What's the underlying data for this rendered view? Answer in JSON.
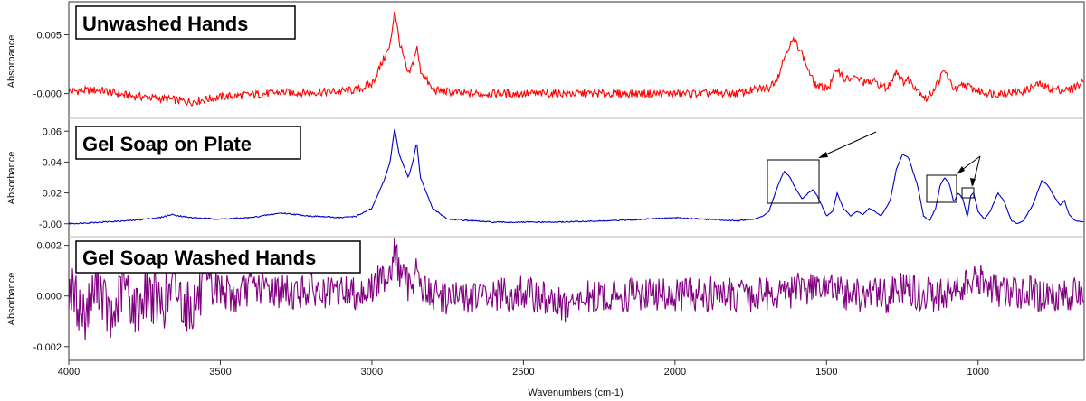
{
  "chart_data": {
    "type": "line",
    "xlabel": "Wavenumbers (cm-1)",
    "xlim": [
      4000,
      650
    ],
    "x_ticks": [
      4000,
      3500,
      3000,
      2500,
      2000,
      1500,
      1000
    ],
    "panels": [
      {
        "title": "Unwashed Hands",
        "ylabel": "Absorbance",
        "ylim": [
          -0.0018,
          0.0075
        ],
        "y_ticks": [
          -0.0,
          0.005
        ],
        "y_tick_labels": [
          "-0.000",
          "0.005"
        ],
        "color": "#ff0000",
        "points": [
          [
            4000,
            0.0002
          ],
          [
            3900,
            0.0003
          ],
          [
            3800,
            -0.0002
          ],
          [
            3700,
            -0.0004
          ],
          [
            3600,
            -0.0007
          ],
          [
            3500,
            -0.0003
          ],
          [
            3400,
            -0.0001
          ],
          [
            3300,
            0.0001
          ],
          [
            3200,
            0.0001
          ],
          [
            3100,
            0.0002
          ],
          [
            3050,
            0.0003
          ],
          [
            3000,
            0.0008
          ],
          [
            2960,
            0.003
          ],
          [
            2940,
            0.004
          ],
          [
            2925,
            0.0072
          ],
          [
            2910,
            0.0045
          ],
          [
            2880,
            0.0015
          ],
          [
            2865,
            0.0025
          ],
          [
            2852,
            0.004
          ],
          [
            2840,
            0.002
          ],
          [
            2800,
            0.0003
          ],
          [
            2700,
            0.0
          ],
          [
            2500,
            0.0
          ],
          [
            2300,
            0.0
          ],
          [
            2100,
            0.0
          ],
          [
            2000,
            0.0
          ],
          [
            1900,
            0.0
          ],
          [
            1800,
            0.0
          ],
          [
            1720,
            0.0004
          ],
          [
            1690,
            0.0005
          ],
          [
            1660,
            0.0015
          ],
          [
            1630,
            0.0038
          ],
          [
            1610,
            0.0045
          ],
          [
            1590,
            0.004
          ],
          [
            1560,
            0.002
          ],
          [
            1540,
            0.0008
          ],
          [
            1520,
            0.0005
          ],
          [
            1490,
            0.0006
          ],
          [
            1465,
            0.0022
          ],
          [
            1440,
            0.0012
          ],
          [
            1400,
            0.0013
          ],
          [
            1370,
            0.0009
          ],
          [
            1340,
            0.001
          ],
          [
            1300,
            0.0004
          ],
          [
            1270,
            0.002
          ],
          [
            1250,
            0.001
          ],
          [
            1230,
            0.0012
          ],
          [
            1200,
            0.0004
          ],
          [
            1170,
            -0.0005
          ],
          [
            1150,
            0.0002
          ],
          [
            1110,
            0.002
          ],
          [
            1090,
            0.0008
          ],
          [
            1070,
            0.0002
          ],
          [
            1050,
            0.0008
          ],
          [
            1000,
            0.0002
          ],
          [
            950,
            0.0
          ],
          [
            900,
            0.0001
          ],
          [
            850,
            0.0002
          ],
          [
            800,
            0.0008
          ],
          [
            760,
            0.0004
          ],
          [
            700,
            0.0003
          ],
          [
            650,
            0.001
          ]
        ]
      },
      {
        "title": "Gel Soap on Plate",
        "ylabel": "Absorbance",
        "ylim": [
          -0.006,
          0.066
        ],
        "y_ticks": [
          -0.0,
          0.02,
          0.04,
          0.06
        ],
        "y_tick_labels": [
          "-0.00",
          "0.02",
          "0.04",
          "0.06"
        ],
        "color": "#0000cc",
        "points": [
          [
            4000,
            0.0
          ],
          [
            3900,
            0.001
          ],
          [
            3800,
            0.002
          ],
          [
            3700,
            0.004
          ],
          [
            3660,
            0.006
          ],
          [
            3600,
            0.004
          ],
          [
            3500,
            0.003
          ],
          [
            3400,
            0.004
          ],
          [
            3300,
            0.007
          ],
          [
            3200,
            0.005
          ],
          [
            3100,
            0.004
          ],
          [
            3050,
            0.005
          ],
          [
            3000,
            0.01
          ],
          [
            2960,
            0.028
          ],
          [
            2940,
            0.04
          ],
          [
            2925,
            0.062
          ],
          [
            2910,
            0.045
          ],
          [
            2880,
            0.03
          ],
          [
            2865,
            0.04
          ],
          [
            2852,
            0.053
          ],
          [
            2840,
            0.03
          ],
          [
            2800,
            0.01
          ],
          [
            2750,
            0.003
          ],
          [
            2600,
            0.001
          ],
          [
            2400,
            0.001
          ],
          [
            2200,
            0.002
          ],
          [
            2000,
            0.004
          ],
          [
            1800,
            0.002
          ],
          [
            1740,
            0.003
          ],
          [
            1710,
            0.005
          ],
          [
            1690,
            0.008
          ],
          [
            1660,
            0.025
          ],
          [
            1640,
            0.034
          ],
          [
            1620,
            0.03
          ],
          [
            1600,
            0.022
          ],
          [
            1580,
            0.016
          ],
          [
            1560,
            0.02
          ],
          [
            1545,
            0.022
          ],
          [
            1530,
            0.018
          ],
          [
            1500,
            0.005
          ],
          [
            1480,
            0.008
          ],
          [
            1465,
            0.02
          ],
          [
            1445,
            0.01
          ],
          [
            1420,
            0.005
          ],
          [
            1400,
            0.008
          ],
          [
            1380,
            0.006
          ],
          [
            1360,
            0.01
          ],
          [
            1340,
            0.008
          ],
          [
            1320,
            0.005
          ],
          [
            1290,
            0.015
          ],
          [
            1270,
            0.035
          ],
          [
            1250,
            0.045
          ],
          [
            1230,
            0.043
          ],
          [
            1200,
            0.025
          ],
          [
            1180,
            0.005
          ],
          [
            1160,
            0.002
          ],
          [
            1140,
            0.01
          ],
          [
            1125,
            0.025
          ],
          [
            1110,
            0.03
          ],
          [
            1095,
            0.026
          ],
          [
            1080,
            0.014
          ],
          [
            1065,
            0.02
          ],
          [
            1050,
            0.016
          ],
          [
            1035,
            0.004
          ],
          [
            1025,
            0.018
          ],
          [
            1015,
            0.02
          ],
          [
            1000,
            0.008
          ],
          [
            980,
            0.003
          ],
          [
            960,
            0.008
          ],
          [
            935,
            0.02
          ],
          [
            915,
            0.015
          ],
          [
            890,
            0.002
          ],
          [
            870,
            0.0
          ],
          [
            850,
            0.002
          ],
          [
            820,
            0.012
          ],
          [
            790,
            0.028
          ],
          [
            770,
            0.025
          ],
          [
            750,
            0.018
          ],
          [
            730,
            0.012
          ],
          [
            715,
            0.015
          ],
          [
            700,
            0.006
          ],
          [
            680,
            0.002
          ],
          [
            650,
            0.001
          ]
        ]
      },
      {
        "title": "Gel Soap Washed Hands",
        "ylabel": "Absorbance",
        "ylim": [
          -0.0024,
          0.0022
        ],
        "y_ticks": [
          -0.002,
          0.0,
          0.002
        ],
        "y_tick_labels": [
          "-0.002",
          "0.000",
          "0.002"
        ],
        "color": "#800080",
        "points": [
          [
            4000,
            0.0004
          ],
          [
            3950,
            -0.0008
          ],
          [
            3900,
            0.0006
          ],
          [
            3860,
            -0.0012
          ],
          [
            3820,
            0.0005
          ],
          [
            3780,
            -0.0006
          ],
          [
            3740,
            0.0003
          ],
          [
            3700,
            -0.0004
          ],
          [
            3650,
            0.0003
          ],
          [
            3600,
            -0.0005
          ],
          [
            3550,
            0.0002
          ],
          [
            3500,
            0.0003
          ],
          [
            3450,
            -0.0001
          ],
          [
            3400,
            0.0004
          ],
          [
            3350,
            0.0003
          ],
          [
            3300,
            0.0002
          ],
          [
            3250,
            0.0001
          ],
          [
            3200,
            0.0003
          ],
          [
            3150,
            0.0
          ],
          [
            3100,
            0.0002
          ],
          [
            3050,
            0.0001
          ],
          [
            3000,
            0.0003
          ],
          [
            2960,
            0.0008
          ],
          [
            2940,
            0.001
          ],
          [
            2925,
            0.0018
          ],
          [
            2910,
            0.001
          ],
          [
            2880,
            0.0004
          ],
          [
            2865,
            0.0007
          ],
          [
            2852,
            0.0012
          ],
          [
            2840,
            0.0004
          ],
          [
            2800,
            0.0
          ],
          [
            2700,
            -0.0001
          ],
          [
            2600,
            0.0
          ],
          [
            2500,
            0.0001
          ],
          [
            2400,
            -0.0002
          ],
          [
            2360,
            -0.0005
          ],
          [
            2340,
            -0.0004
          ],
          [
            2300,
            -0.0001
          ],
          [
            2200,
            0.0
          ],
          [
            2100,
            0.0001
          ],
          [
            2000,
            0.0
          ],
          [
            1900,
            0.0001
          ],
          [
            1800,
            0.0
          ],
          [
            1700,
            0.0001
          ],
          [
            1600,
            0.0002
          ],
          [
            1550,
            0.0004
          ],
          [
            1500,
            0.0003
          ],
          [
            1450,
            0.0001
          ],
          [
            1400,
            0.0
          ],
          [
            1350,
            0.0001
          ],
          [
            1300,
            0.0
          ],
          [
            1250,
            0.0003
          ],
          [
            1200,
            0.0001
          ],
          [
            1150,
            0.0
          ],
          [
            1100,
            0.0002
          ],
          [
            1050,
            0.0004
          ],
          [
            1000,
            0.0006
          ],
          [
            950,
            0.0003
          ],
          [
            900,
            0.0001
          ],
          [
            850,
            0.0002
          ],
          [
            800,
            0.0
          ],
          [
            750,
            0.0001
          ],
          [
            700,
            0.0
          ],
          [
            650,
            0.0002
          ]
        ]
      }
    ],
    "annotations": "rectangular boxes and arrows highlighting peaks in the Gel Soap on Plate spectrum"
  }
}
